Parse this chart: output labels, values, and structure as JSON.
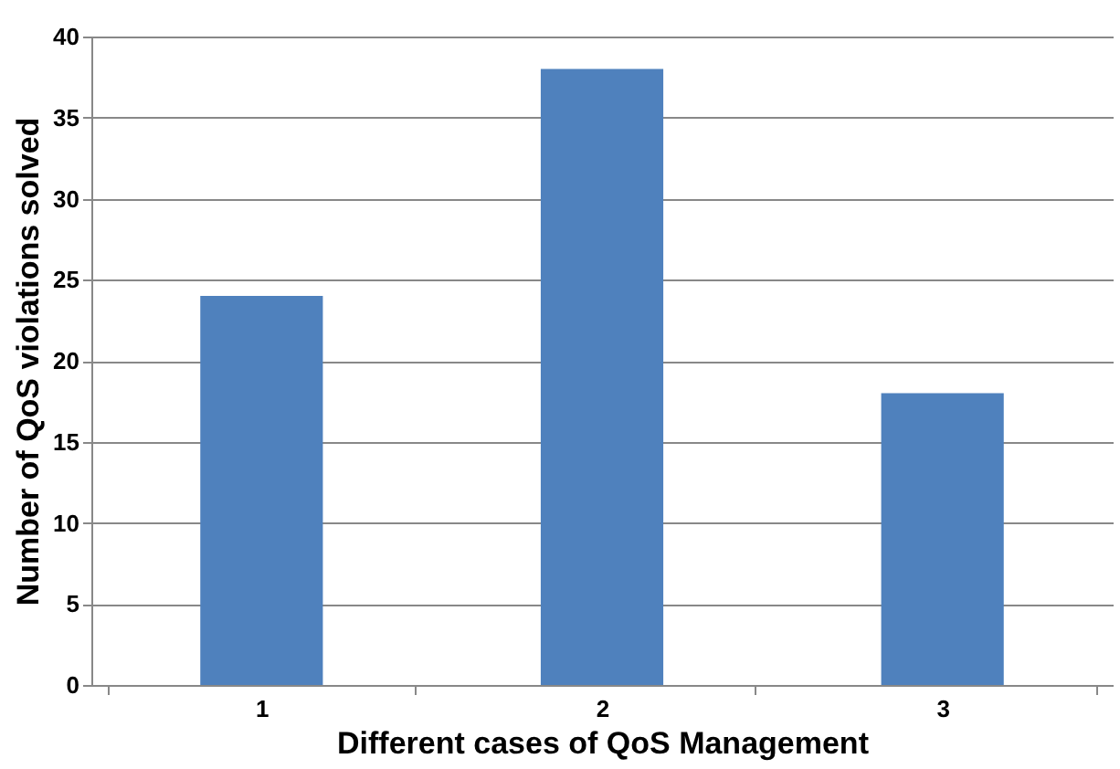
{
  "chart_data": {
    "type": "bar",
    "xlabel": "Different cases of QoS Management",
    "ylabel": "Number of QoS violations solved",
    "categories": [
      "1",
      "2",
      "3"
    ],
    "values": [
      24,
      38,
      18
    ],
    "color": "#4f81bd",
    "ylim": [
      0,
      40
    ],
    "yticks": [
      0,
      5,
      10,
      15,
      20,
      25,
      30,
      35,
      40
    ],
    "grid": "y"
  }
}
